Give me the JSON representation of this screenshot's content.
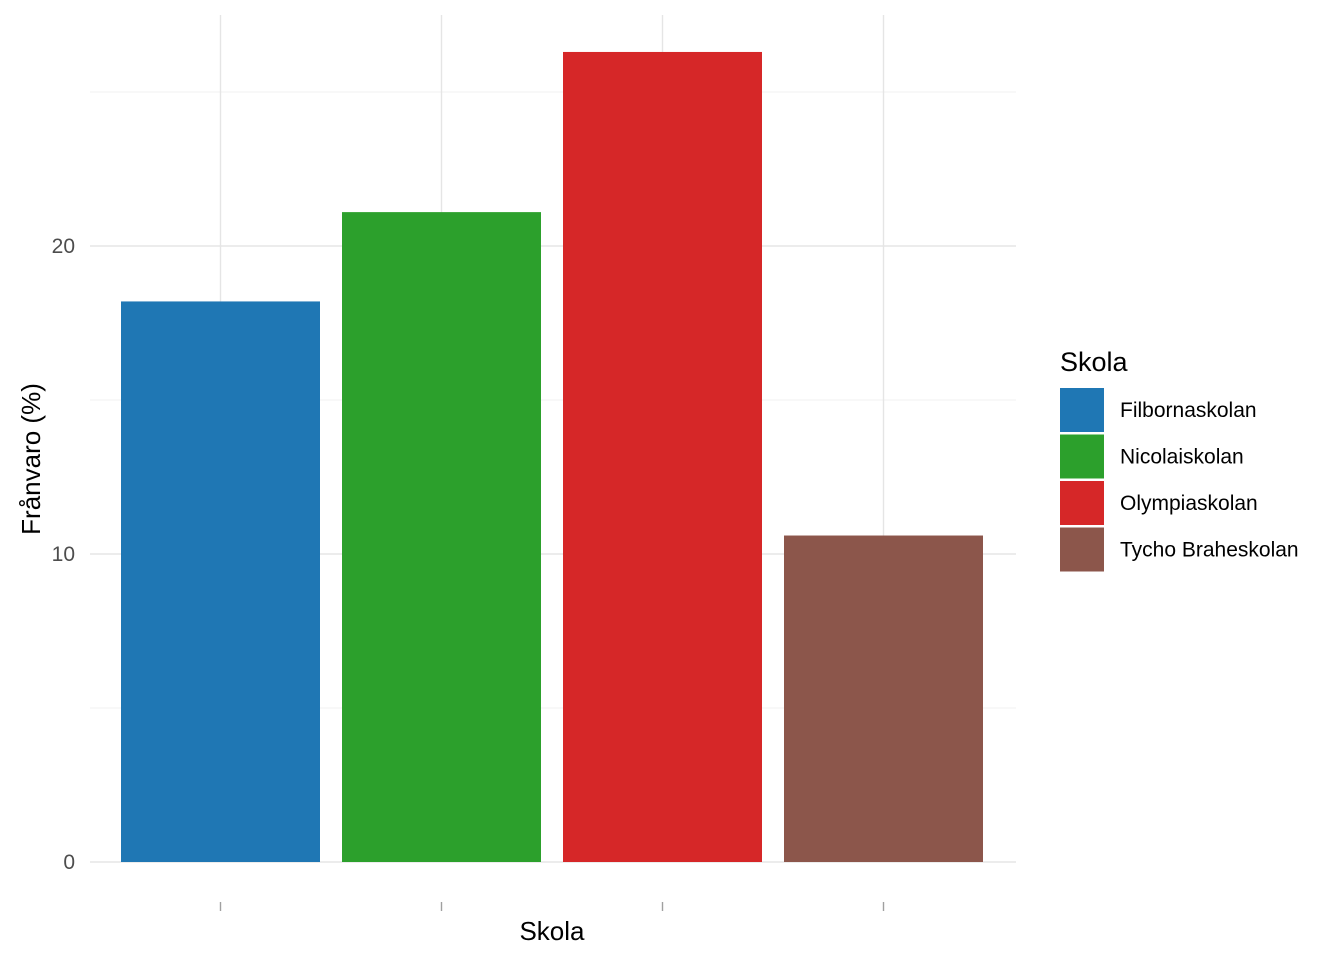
{
  "chart_data": {
    "type": "bar",
    "xlabel": "Skola",
    "ylabel": "Frånvaro (%)",
    "ylim": [
      0,
      26.3
    ],
    "yticks": [
      0,
      10,
      20
    ],
    "grid": true,
    "legend_position": "right",
    "legend": {
      "title": "Skola"
    },
    "categories": [
      "Filbornaskolan",
      "Nicolaiskolan",
      "Olympiaskolan",
      "Tycho Braheskolan"
    ],
    "values": [
      18.2,
      21.1,
      26.3,
      10.6
    ],
    "colors": [
      "#1f77b4",
      "#2ca02c",
      "#d62728",
      "#8c564b"
    ]
  }
}
